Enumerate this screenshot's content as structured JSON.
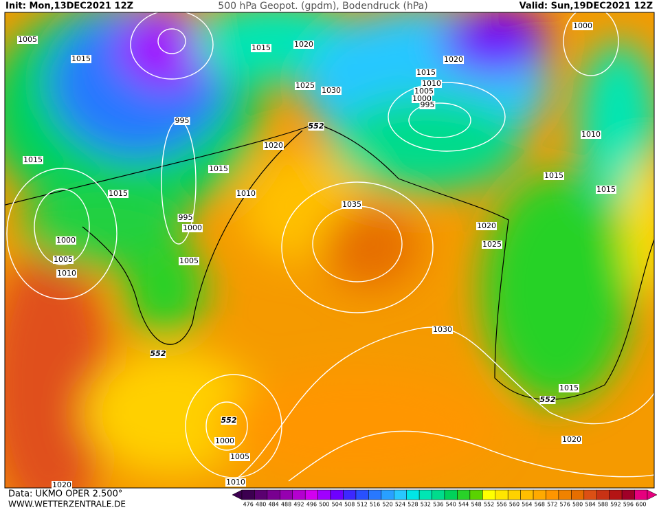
{
  "header": {
    "init": "Init: Mon,13DEC2021 12Z",
    "title": "500 hPa Geopot. (gpdm), Bodendruck (hPa)",
    "valid": "Valid: Sun,19DEC2021 12Z"
  },
  "map": {
    "contour_labels": [
      1005,
      1015,
      995,
      1015,
      1020,
      1025,
      1030,
      552,
      1020,
      1015,
      1015,
      1015,
      1010,
      995,
      1000,
      1005,
      1000,
      1005,
      1010,
      1035,
      1020,
      1015,
      1010,
      1005,
      1000,
      995,
      1000,
      1010,
      1015,
      1015,
      1020,
      1025,
      1030,
      552,
      552,
      1015,
      1020,
      552,
      1000,
      1005,
      1010,
      1020
    ]
  },
  "footer": {
    "source": "Data: UKMO OPER 2.500°",
    "site": "WWW.WETTERZENTRALE.DE"
  },
  "colorbar": {
    "labels": [
      476,
      480,
      484,
      488,
      492,
      496,
      500,
      504,
      508,
      512,
      516,
      520,
      524,
      528,
      532,
      536,
      540,
      544,
      548,
      552,
      556,
      560,
      564,
      568,
      572,
      576,
      580,
      584,
      588,
      592,
      596,
      600
    ],
    "colors": [
      "#3c0050",
      "#5a0070",
      "#780090",
      "#9600b0",
      "#b400d0",
      "#d200f0",
      "#a000ff",
      "#6e00ff",
      "#3c28ff",
      "#2850ff",
      "#2878ff",
      "#28a0ff",
      "#28c8ff",
      "#00e6e6",
      "#00e6b4",
      "#00dc8c",
      "#00d25a",
      "#28d228",
      "#5ad200",
      "#ffff00",
      "#ffe600",
      "#ffd200",
      "#ffbe00",
      "#ffaa00",
      "#ff9600",
      "#f08200",
      "#e66e00",
      "#dc5014",
      "#c83214",
      "#b41414",
      "#a00028",
      "#e6007e"
    ]
  }
}
